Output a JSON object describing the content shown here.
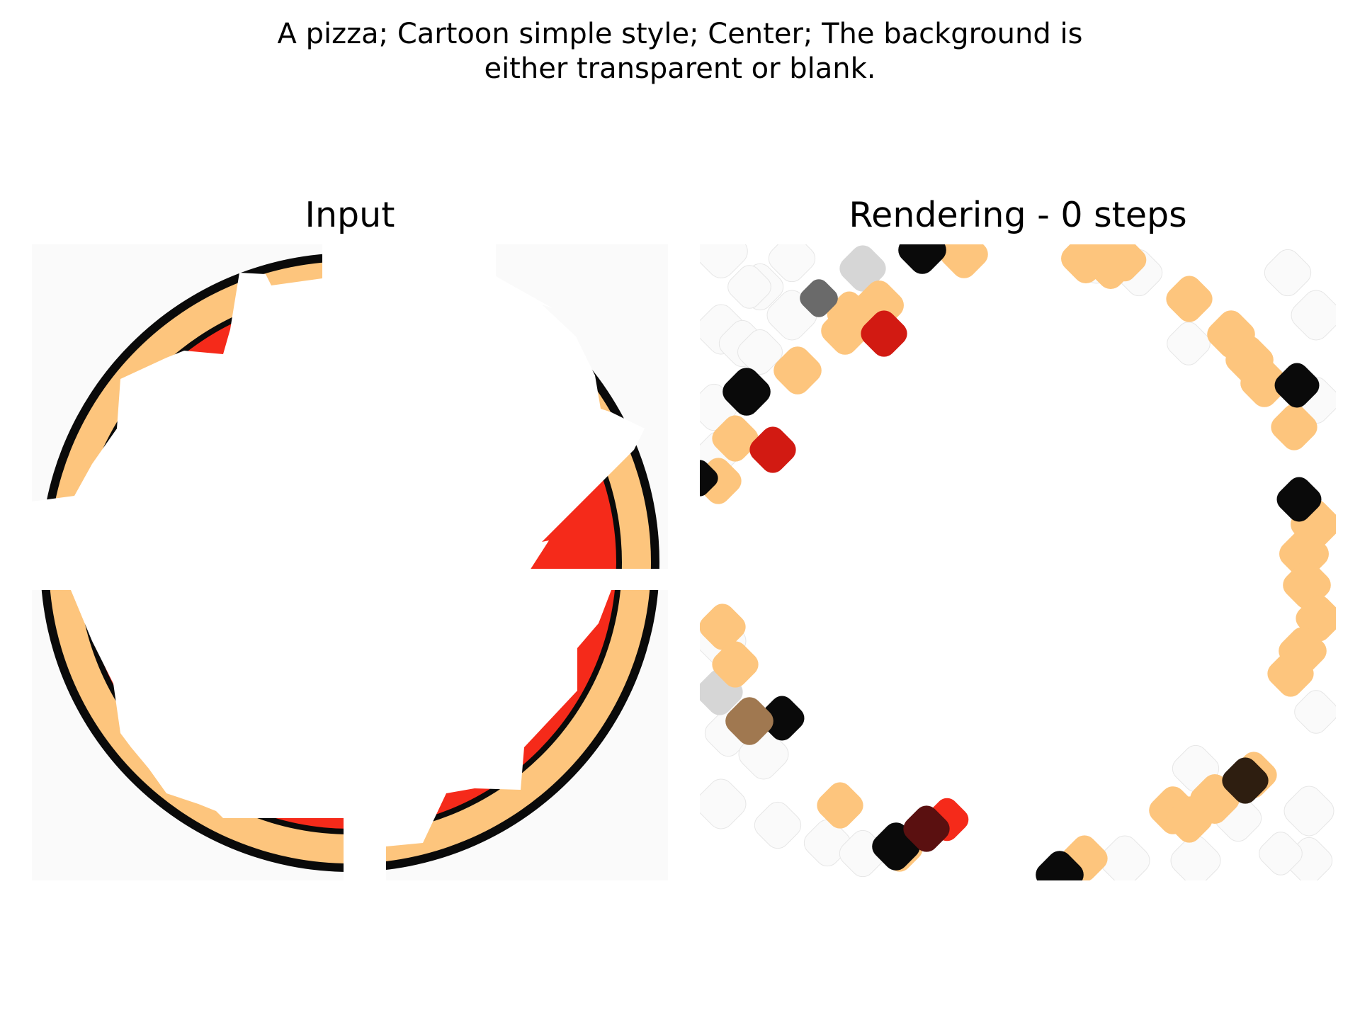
{
  "figure": {
    "suptitle_lines": [
      "A pizza; Cartoon simple style; Center; The background is",
      "either transparent or blank."
    ],
    "panels": [
      {
        "title": "Input"
      },
      {
        "title": "Rendering - 0 steps"
      }
    ]
  },
  "colors": {
    "background": "#ffffff",
    "canvas": "#fafafa",
    "crust": "#fdc57d",
    "outline": "#0a0a0a",
    "sauce": "#f52a1a",
    "basil": "#8fd98a",
    "splat_red": "#d21a12",
    "splat_gray": "#d6d6d6",
    "splat_dark_gray": "#6a6a6a",
    "splat_brown": "#a07850",
    "splat_maroon": "#5a1010",
    "splat_dark_brown": "#2e1e10"
  }
}
